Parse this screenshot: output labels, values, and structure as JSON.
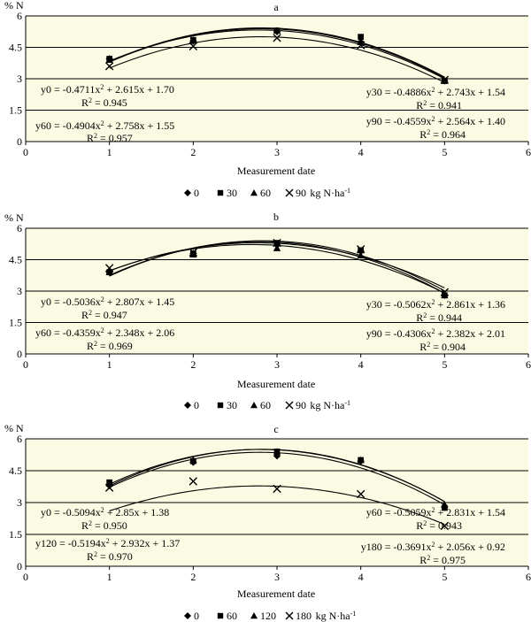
{
  "chart_data": [
    {
      "type": "scatter",
      "title": "a",
      "ylabel": "% N",
      "xlabel": "Measurement date",
      "xlim": [
        0,
        6
      ],
      "ylim": [
        0,
        6
      ],
      "xticks": [
        "0",
        "1",
        "2",
        "3",
        "4",
        "5",
        "6"
      ],
      "yticks": [
        "0",
        "1.5",
        "3",
        "4.5",
        "6"
      ],
      "grid": "horizontal",
      "legend_position": "bottom",
      "legend_unit": "kg N·ha",
      "legend_unit_sup": "-1",
      "series": [
        {
          "name": "0",
          "marker": "diamond",
          "x": [
            1,
            2,
            3,
            4,
            5
          ],
          "y": [
            3.95,
            4.8,
            5.25,
            4.75,
            2.9
          ],
          "fit": [
            -0.4711,
            2.615,
            1.7
          ],
          "eq": "y0 = -0.4711x",
          "eq_rest": " + 2.615x + 1.70",
          "r2": " = 0.945"
        },
        {
          "name": "30",
          "marker": "square",
          "x": [
            1,
            2,
            3,
            4,
            5
          ],
          "y": [
            3.95,
            4.85,
            5.3,
            5.0,
            2.9
          ],
          "fit": [
            -0.4886,
            2.743,
            1.54
          ],
          "eq": "y30 = -0.4886x",
          "eq_rest": " + 2.743x + 1.54",
          "r2": " = 0.941"
        },
        {
          "name": "60",
          "marker": "triangle",
          "x": [
            1,
            2,
            3,
            4,
            5
          ],
          "y": [
            3.9,
            4.85,
            5.3,
            4.75,
            2.9
          ],
          "fit": [
            -0.4904,
            2.758,
            1.55
          ],
          "eq": "y60 = -0.4904x",
          "eq_rest": " + 2.758x + 1.55",
          "r2": " = 0.957"
        },
        {
          "name": "90",
          "marker": "x",
          "x": [
            1,
            2,
            3,
            4,
            5
          ],
          "y": [
            3.6,
            4.55,
            4.95,
            4.6,
            2.95
          ],
          "fit": [
            -0.4559,
            2.564,
            1.4
          ],
          "eq": "y90 = -0.4559x",
          "eq_rest": " + 2.564x + 1.40",
          "r2": " = 0.964"
        }
      ]
    },
    {
      "type": "scatter",
      "title": "b",
      "ylabel": "% N",
      "xlabel": "Measurement date",
      "xlim": [
        0,
        6
      ],
      "ylim": [
        0,
        6
      ],
      "xticks": [
        "0",
        "1",
        "2",
        "3",
        "4",
        "5",
        "6"
      ],
      "yticks": [
        "0",
        "1.5",
        "3",
        "4.5",
        "6"
      ],
      "grid": "horizontal",
      "legend_position": "bottom",
      "legend_unit": "kg N·ha",
      "legend_unit_sup": "-1",
      "series": [
        {
          "name": "0",
          "marker": "diamond",
          "x": [
            1,
            2,
            3,
            4,
            5
          ],
          "y": [
            3.9,
            4.8,
            5.2,
            4.9,
            2.8
          ],
          "fit": [
            -0.5036,
            2.807,
            1.45
          ],
          "eq": "y0 = -0.5036x",
          "eq_rest": " + 2.807x + 1.45",
          "r2": " = 0.947"
        },
        {
          "name": "30",
          "marker": "square",
          "x": [
            1,
            2,
            3,
            4,
            5
          ],
          "y": [
            3.9,
            4.8,
            5.3,
            4.95,
            2.8
          ],
          "fit": [
            -0.5062,
            2.861,
            1.36
          ],
          "eq": "y30 = -0.5062x",
          "eq_rest": " + 2.861x + 1.36",
          "r2": " = 0.944"
        },
        {
          "name": "60",
          "marker": "triangle",
          "x": [
            1,
            2,
            3,
            4,
            5
          ],
          "y": [
            3.9,
            4.75,
            5.05,
            4.7,
            2.8
          ],
          "fit": [
            -0.4359,
            2.348,
            2.06
          ],
          "eq": "y60 = -0.4359x",
          "eq_rest": "  + 2.348x + 2.06",
          "r2": " = 0.969"
        },
        {
          "name": "90",
          "marker": "x",
          "x": [
            1,
            2,
            3,
            4,
            5
          ],
          "y": [
            4.1,
            4.85,
            5.3,
            5.0,
            2.95
          ],
          "fit": [
            -0.4306,
            2.382,
            2.01
          ],
          "eq": "y90 = -0.4306x",
          "eq_rest": " + 2.382x + 2.01",
          "r2": " = 0.904"
        }
      ]
    },
    {
      "type": "scatter",
      "title": "c",
      "ylabel": "% N",
      "xlabel": "Measurement date",
      "xlim": [
        0,
        6
      ],
      "ylim": [
        0,
        6
      ],
      "xticks": [
        "0",
        "1",
        "2",
        "3",
        "4",
        "5",
        "6"
      ],
      "yticks": [
        "0",
        "1.5",
        "3",
        "4.5",
        "6"
      ],
      "grid": "horizontal",
      "legend_position": "bottom",
      "legend_unit": "kg N·ha",
      "legend_unit_sup": "-1",
      "series": [
        {
          "name": "0",
          "marker": "diamond",
          "x": [
            1,
            2,
            3,
            4,
            5
          ],
          "y": [
            3.8,
            4.9,
            5.2,
            4.95,
            2.8
          ],
          "fit": [
            -0.5094,
            2.85,
            1.38
          ],
          "eq": "y0 = -0.5094x",
          "eq_rest": " + 2.85x + 1.38",
          "r2": " = 0.950"
        },
        {
          "name": "60",
          "marker": "square",
          "x": [
            1,
            2,
            3,
            4,
            5
          ],
          "y": [
            3.95,
            4.95,
            5.4,
            5.0,
            2.75
          ],
          "fit": [
            -0.5059,
            2.831,
            1.54
          ],
          "eq": "y60 = -0.5059x",
          "eq_rest": " + 2.831x + 1.54",
          "r2": " = 0.943"
        },
        {
          "name": "120",
          "marker": "triangle",
          "x": [
            1,
            2,
            3,
            4,
            5
          ],
          "y": [
            3.9,
            5.0,
            5.4,
            5.0,
            2.9
          ],
          "fit": [
            -0.5194,
            2.932,
            1.37
          ],
          "eq": "y120 = -0.5194x",
          "eq_rest": " + 2.932x + 1.37",
          "r2": " = 0.970"
        },
        {
          "name": "180",
          "marker": "x",
          "x": [
            1,
            2,
            3,
            4,
            5
          ],
          "y": [
            3.7,
            4.0,
            3.65,
            3.4,
            1.9
          ],
          "fit": [
            -0.3691,
            2.056,
            0.92
          ],
          "eq": "y180 = -0.3691x",
          "eq_rest": " + 2.056x + 0.92",
          "r2": " = 0.975"
        }
      ]
    }
  ]
}
